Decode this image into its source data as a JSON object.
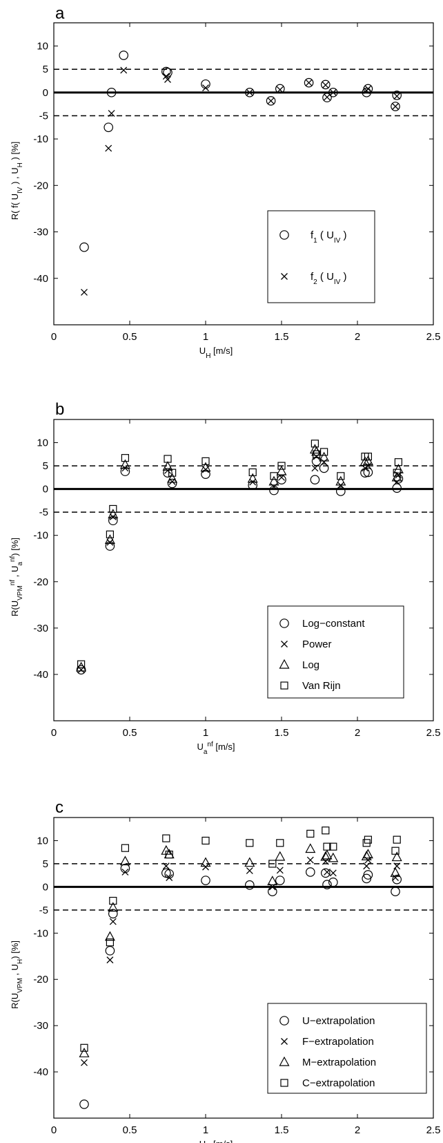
{
  "chart_data": [
    {
      "panel": "a",
      "type": "scatter",
      "xlabel": "U_H [m/s]",
      "ylabel": "R( f( U_IV ) , U_H ) [%]",
      "xlim": [
        0,
        2.5
      ],
      "ylim": [
        -50,
        15
      ],
      "xticks": [
        0,
        0.5,
        1,
        1.5,
        2,
        2.5
      ],
      "yticks": [
        10,
        5,
        0,
        -5,
        -10,
        -20,
        -30,
        -40
      ],
      "reference_lines": [
        {
          "y": 0,
          "style": "solid"
        },
        {
          "y": 5,
          "style": "dashed"
        },
        {
          "y": -5,
          "style": "dashed"
        }
      ],
      "legend_position": "lower-right",
      "series": [
        {
          "name": "f1 ( U_IV )",
          "marker": "circle",
          "x": [
            0.2,
            0.36,
            0.38,
            0.46,
            0.74,
            0.75,
            1.0,
            1.29,
            1.43,
            1.49,
            1.68,
            1.79,
            1.8,
            1.84,
            2.06,
            2.07,
            2.25,
            2.26
          ],
          "y": [
            -33.3,
            -7.5,
            0,
            8,
            4.5,
            4.3,
            1.8,
            0,
            -1.8,
            0.8,
            2.1,
            1.7,
            -1.1,
            0,
            0,
            0.8,
            -3,
            -0.6
          ]
        },
        {
          "name": "f2 ( U_IV )",
          "marker": "x",
          "x": [
            0.2,
            0.36,
            0.38,
            0.46,
            0.74,
            0.75,
            1.0,
            1.29,
            1.43,
            1.49,
            1.68,
            1.79,
            1.8,
            1.84,
            2.06,
            2.07,
            2.25,
            2.26
          ],
          "y": [
            -43,
            -12,
            -4.5,
            4.8,
            3.5,
            2.8,
            1.0,
            0,
            -1.8,
            0.6,
            2.1,
            1.6,
            -1.0,
            0,
            0.4,
            0.8,
            -3,
            -0.8
          ]
        }
      ]
    },
    {
      "panel": "b",
      "type": "scatter",
      "xlabel": "U_a^nf [m/s]",
      "ylabel": "R(U_VPM^nf , U_a^nf) [%]",
      "xlim": [
        0,
        2.5
      ],
      "ylim": [
        -50,
        15
      ],
      "xticks": [
        0,
        0.5,
        1,
        1.5,
        2,
        2.5
      ],
      "yticks": [
        10,
        5,
        0,
        -5,
        -10,
        -20,
        -30,
        -40
      ],
      "reference_lines": [
        {
          "y": 0,
          "style": "solid"
        },
        {
          "y": 5,
          "style": "dashed"
        },
        {
          "y": -5,
          "style": "dashed"
        }
      ],
      "legend_position": "lower-right",
      "series": [
        {
          "name": "Log−constant",
          "marker": "circle",
          "x": [
            0.18,
            0.37,
            0.39,
            0.47,
            0.75,
            0.78,
            1.0,
            1.31,
            1.45,
            1.5,
            1.72,
            1.73,
            1.78,
            1.89,
            2.05,
            2.07,
            2.26,
            2.27
          ],
          "y": [
            -39,
            -12.3,
            -6.8,
            3.8,
            3.5,
            1.2,
            3.2,
            0.8,
            -0.3,
            2,
            2,
            6,
            4.5,
            -0.5,
            3.5,
            3.6,
            0.2,
            2.2
          ]
        },
        {
          "name": "Power",
          "marker": "x",
          "x": [
            0.18,
            0.37,
            0.39,
            0.47,
            0.75,
            0.78,
            1.0,
            1.31,
            1.45,
            1.5,
            1.72,
            1.73,
            1.78,
            1.89,
            2.05,
            2.07,
            2.26,
            2.27
          ],
          "y": [
            -39,
            -11.5,
            -6,
            4.5,
            4,
            1.6,
            4.2,
            1.5,
            0.5,
            2.5,
            4.5,
            7,
            5.8,
            0.8,
            4.5,
            5,
            1.5,
            3
          ]
        },
        {
          "name": "Log",
          "marker": "triangle",
          "x": [
            0.18,
            0.37,
            0.39,
            0.47,
            0.75,
            0.78,
            1.0,
            1.31,
            1.45,
            1.5,
            1.72,
            1.73,
            1.78,
            1.89,
            2.05,
            2.07,
            2.26,
            2.27
          ],
          "y": [
            -38.5,
            -11,
            -5.5,
            5.2,
            4.8,
            2.2,
            4.6,
            2.2,
            1.6,
            3.8,
            8.5,
            8,
            6.8,
            1.6,
            5.8,
            6,
            2.5,
            4.2
          ]
        },
        {
          "name": "Van Rijn",
          "marker": "square",
          "x": [
            0.18,
            0.37,
            0.39,
            0.47,
            0.75,
            0.78,
            1.0,
            1.31,
            1.45,
            1.5,
            1.72,
            1.73,
            1.78,
            1.89,
            2.05,
            2.07,
            2.26,
            2.27
          ],
          "y": [
            -37.8,
            -9.8,
            -4.3,
            6.7,
            6.5,
            3.5,
            6,
            3.6,
            2.8,
            5,
            9.8,
            7.5,
            8,
            2.8,
            7,
            7,
            3.5,
            5.8
          ]
        }
      ]
    },
    {
      "panel": "c",
      "type": "scatter",
      "xlabel": "U_H [m/s]",
      "ylabel": "R(U_VPM , U_H) [%]",
      "xlim": [
        0,
        2.5
      ],
      "ylim": [
        -50,
        15
      ],
      "xticks": [
        0,
        0.5,
        1,
        1.5,
        2,
        2.5
      ],
      "yticks": [
        10,
        5,
        0,
        -5,
        -10,
        -20,
        -30,
        -40
      ],
      "reference_lines": [
        {
          "y": 0,
          "style": "solid"
        },
        {
          "y": 5,
          "style": "dashed"
        },
        {
          "y": -5,
          "style": "dashed"
        }
      ],
      "legend_position": "lower-right",
      "series": [
        {
          "name": "U−extrapolation",
          "marker": "circle",
          "x": [
            0.2,
            0.37,
            0.39,
            0.47,
            0.74,
            0.76,
            1.0,
            1.29,
            1.44,
            1.49,
            1.69,
            1.79,
            1.8,
            1.84,
            2.06,
            2.07,
            2.25,
            2.26
          ],
          "y": [
            -47,
            -13.8,
            -5.8,
            4,
            3,
            2.8,
            1.4,
            0.4,
            -1,
            1.4,
            3.2,
            3,
            0.5,
            1,
            1.8,
            2.6,
            -1,
            1.6
          ]
        },
        {
          "name": "F−extrapolation",
          "marker": "x",
          "x": [
            0.2,
            0.37,
            0.39,
            0.47,
            0.74,
            0.76,
            1.0,
            1.29,
            1.44,
            1.49,
            1.69,
            1.79,
            1.8,
            1.84,
            2.06,
            2.07,
            2.25,
            2.26
          ],
          "y": [
            -38,
            -15.8,
            -7.5,
            3.2,
            4.5,
            2,
            4.3,
            3.5,
            0,
            3.6,
            5.8,
            5.5,
            3.2,
            3,
            4.5,
            5.8,
            2,
            4.5
          ]
        },
        {
          "name": "M−extrapolation",
          "marker": "triangle",
          "x": [
            0.2,
            0.37,
            0.39,
            0.47,
            0.74,
            0.76,
            1.0,
            1.29,
            1.44,
            1.49,
            1.69,
            1.79,
            1.8,
            1.84,
            2.06,
            2.07,
            2.25,
            2.26
          ],
          "y": [
            -36,
            -10.8,
            -4.5,
            5.5,
            7.8,
            7,
            5.2,
            5.2,
            1.2,
            6.5,
            8.2,
            6.5,
            6.8,
            6.2,
            6.6,
            7,
            3,
            6.4
          ]
        },
        {
          "name": "C−extrapolation",
          "marker": "square",
          "x": [
            0.2,
            0.37,
            0.39,
            0.47,
            0.74,
            0.76,
            1.0,
            1.29,
            1.44,
            1.49,
            1.69,
            1.79,
            1.8,
            1.84,
            2.06,
            2.07,
            2.25,
            2.26
          ],
          "y": [
            -34.8,
            -12,
            -3,
            8.4,
            10.5,
            7,
            10,
            9.5,
            5,
            9.5,
            11.5,
            12.2,
            8.7,
            8.7,
            9.5,
            10.2,
            7.8,
            10.2
          ]
        }
      ]
    }
  ]
}
